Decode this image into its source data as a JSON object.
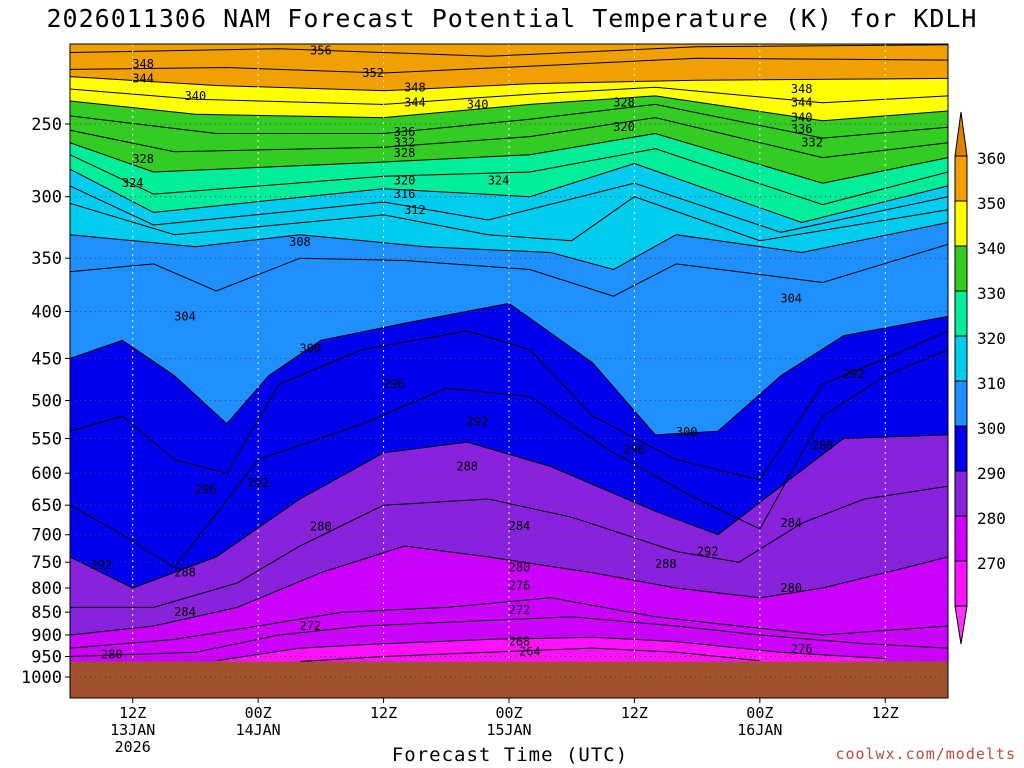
{
  "chart_data": {
    "type": "heatmap",
    "title": "2026011306 NAM Forecast Potential Temperature (K) for KDLH",
    "xlabel": "Forecast Time (UTC)",
    "ylabel": "",
    "credit": "coolwx.com/modelts",
    "x_ticks": [
      {
        "hour": 6,
        "line1": "12Z",
        "line2": "13JAN",
        "line3": "2026"
      },
      {
        "hour": 18,
        "line1": "00Z",
        "line2": "14JAN",
        "line3": ""
      },
      {
        "hour": 30,
        "line1": "12Z",
        "line2": "",
        "line3": ""
      },
      {
        "hour": 42,
        "line1": "00Z",
        "line2": "15JAN",
        "line3": ""
      },
      {
        "hour": 54,
        "line1": "12Z",
        "line2": "",
        "line3": ""
      },
      {
        "hour": 66,
        "line1": "00Z",
        "line2": "16JAN",
        "line3": ""
      },
      {
        "hour": 78,
        "line1": "12Z",
        "line2": "",
        "line3": ""
      }
    ],
    "x_range_hours": [
      0,
      84
    ],
    "y_ticks": [
      "250",
      "300",
      "350",
      "400",
      "450",
      "500",
      "550",
      "600",
      "650",
      "700",
      "750",
      "800",
      "850",
      "900",
      "950",
      "1000"
    ],
    "y_range_hpa": [
      200,
      1030
    ],
    "y_scale": "log-pressure",
    "colorbar": {
      "labels": [
        "360",
        "350",
        "340",
        "330",
        "320",
        "310",
        "300",
        "290",
        "280",
        "270"
      ],
      "band_colors": [
        "#f0a000",
        "#ffff00",
        "#33cc22",
        "#00ee99",
        "#00ccee",
        "#1e90ff",
        "#0000ee",
        "#8822dd",
        "#cc00ff",
        "#ff11ff"
      ],
      "arrow_top_color": "#e08000",
      "arrow_bottom_color": "#ff33ff"
    },
    "surface_color": "#a0522d",
    "surface_pressure_hpa": 962,
    "isentropes": [
      {
        "theta": 356,
        "points": [
          [
            0,
            209
          ],
          [
            20,
            207
          ],
          [
            40,
            211
          ],
          [
            60,
            206
          ],
          [
            84,
            205
          ]
        ]
      },
      {
        "theta": 352,
        "points": [
          [
            0,
            218
          ],
          [
            15,
            217
          ],
          [
            30,
            220
          ],
          [
            45,
            216
          ],
          [
            60,
            212
          ],
          [
            84,
            213
          ]
        ]
      },
      {
        "theta": 348,
        "points": [
          [
            0,
            222
          ],
          [
            14,
            227
          ],
          [
            30,
            230
          ],
          [
            44,
            226
          ],
          [
            60,
            224
          ],
          [
            84,
            223
          ]
        ]
      },
      {
        "theta": 344,
        "points": [
          [
            0,
            229
          ],
          [
            12,
            235
          ],
          [
            30,
            238
          ],
          [
            44,
            232
          ],
          [
            56,
            228
          ],
          [
            72,
            237
          ],
          [
            84,
            233
          ]
        ]
      },
      {
        "theta": 340,
        "points": [
          [
            0,
            236
          ],
          [
            12,
            244
          ],
          [
            30,
            246
          ],
          [
            44,
            238
          ],
          [
            56,
            233
          ],
          [
            72,
            248
          ],
          [
            84,
            242
          ]
        ]
      },
      {
        "theta": 336,
        "points": [
          [
            0,
            245
          ],
          [
            14,
            256
          ],
          [
            30,
            256
          ],
          [
            44,
            247
          ],
          [
            56,
            238
          ],
          [
            72,
            259
          ],
          [
            84,
            252
          ]
        ]
      },
      {
        "theta": 332,
        "points": [
          [
            0,
            254
          ],
          [
            10,
            268
          ],
          [
            30,
            265
          ],
          [
            44,
            258
          ],
          [
            56,
            246
          ],
          [
            72,
            272
          ],
          [
            84,
            262
          ]
        ]
      },
      {
        "theta": 328,
        "points": [
          [
            0,
            262
          ],
          [
            8,
            282
          ],
          [
            30,
            275
          ],
          [
            44,
            270
          ],
          [
            56,
            256
          ],
          [
            72,
            290
          ],
          [
            84,
            272
          ]
        ]
      },
      {
        "theta": 324,
        "points": [
          [
            0,
            270
          ],
          [
            8,
            298
          ],
          [
            30,
            285
          ],
          [
            44,
            282
          ],
          [
            56,
            266
          ],
          [
            72,
            306
          ],
          [
            84,
            282
          ]
        ]
      },
      {
        "theta": 320,
        "points": [
          [
            0,
            280
          ],
          [
            8,
            312
          ],
          [
            30,
            294
          ],
          [
            44,
            300
          ],
          [
            54,
            276
          ],
          [
            70,
            320
          ],
          [
            84,
            292
          ]
        ]
      },
      {
        "theta": 316,
        "points": [
          [
            0,
            292
          ],
          [
            8,
            322
          ],
          [
            30,
            304
          ],
          [
            40,
            318
          ],
          [
            54,
            290
          ],
          [
            68,
            328
          ],
          [
            84,
            300
          ]
        ]
      },
      {
        "theta": 312,
        "points": [
          [
            0,
            305
          ],
          [
            10,
            330
          ],
          [
            30,
            314
          ],
          [
            40,
            330
          ],
          [
            48,
            335
          ],
          [
            54,
            300
          ],
          [
            66,
            335
          ],
          [
            84,
            310
          ]
        ]
      },
      {
        "theta": 308,
        "points": [
          [
            0,
            330
          ],
          [
            12,
            340
          ],
          [
            22,
            330
          ],
          [
            34,
            340
          ],
          [
            46,
            345
          ],
          [
            52,
            360
          ],
          [
            58,
            330
          ],
          [
            70,
            345
          ],
          [
            84,
            320
          ]
        ]
      },
      {
        "theta": 304,
        "points": [
          [
            0,
            362
          ],
          [
            8,
            355
          ],
          [
            14,
            380
          ],
          [
            22,
            350
          ],
          [
            32,
            352
          ],
          [
            44,
            360
          ],
          [
            52,
            385
          ],
          [
            58,
            355
          ],
          [
            72,
            372
          ],
          [
            84,
            338
          ]
        ]
      },
      {
        "theta": 300,
        "points": [
          [
            0,
            450
          ],
          [
            5,
            430
          ],
          [
            10,
            470
          ],
          [
            15,
            530
          ],
          [
            19,
            470
          ],
          [
            24,
            430
          ],
          [
            32,
            412
          ],
          [
            42,
            392
          ],
          [
            50,
            455
          ],
          [
            56,
            545
          ],
          [
            62,
            540
          ],
          [
            68,
            470
          ],
          [
            74,
            425
          ],
          [
            84,
            405
          ]
        ]
      },
      {
        "theta": 296,
        "points": [
          [
            0,
            540
          ],
          [
            5,
            520
          ],
          [
            10,
            580
          ],
          [
            15,
            600
          ],
          [
            20,
            480
          ],
          [
            28,
            440
          ],
          [
            38,
            420
          ],
          [
            44,
            440
          ],
          [
            50,
            520
          ],
          [
            58,
            580
          ],
          [
            66,
            610
          ],
          [
            72,
            480
          ],
          [
            78,
            450
          ],
          [
            84,
            420
          ]
        ]
      },
      {
        "theta": 292,
        "points": [
          [
            0,
            650
          ],
          [
            5,
            700
          ],
          [
            10,
            760
          ],
          [
            18,
            580
          ],
          [
            28,
            530
          ],
          [
            36,
            485
          ],
          [
            44,
            495
          ],
          [
            52,
            570
          ],
          [
            60,
            640
          ],
          [
            66,
            690
          ],
          [
            72,
            520
          ],
          [
            78,
            470
          ],
          [
            84,
            440
          ]
        ]
      },
      {
        "theta": 288,
        "points": [
          [
            0,
            740
          ],
          [
            6,
            800
          ],
          [
            14,
            740
          ],
          [
            22,
            640
          ],
          [
            30,
            570
          ],
          [
            38,
            555
          ],
          [
            46,
            590
          ],
          [
            56,
            660
          ],
          [
            62,
            700
          ],
          [
            68,
            620
          ],
          [
            74,
            550
          ],
          [
            84,
            545
          ]
        ]
      },
      {
        "theta": 284,
        "points": [
          [
            0,
            840
          ],
          [
            8,
            840
          ],
          [
            16,
            790
          ],
          [
            22,
            720
          ],
          [
            30,
            650
          ],
          [
            40,
            640
          ],
          [
            48,
            670
          ],
          [
            58,
            730
          ],
          [
            64,
            750
          ],
          [
            70,
            680
          ],
          [
            76,
            640
          ],
          [
            84,
            620
          ]
        ]
      },
      {
        "theta": 280,
        "points": [
          [
            0,
            900
          ],
          [
            8,
            880
          ],
          [
            16,
            840
          ],
          [
            24,
            770
          ],
          [
            32,
            720
          ],
          [
            40,
            740
          ],
          [
            50,
            770
          ],
          [
            58,
            800
          ],
          [
            66,
            820
          ],
          [
            72,
            800
          ],
          [
            80,
            760
          ],
          [
            84,
            740
          ]
        ]
      },
      {
        "theta": 276,
        "points": [
          [
            0,
            930
          ],
          [
            10,
            910
          ],
          [
            18,
            880
          ],
          [
            26,
            850
          ],
          [
            36,
            840
          ],
          [
            46,
            820
          ],
          [
            56,
            860
          ],
          [
            64,
            880
          ],
          [
            72,
            900
          ],
          [
            84,
            880
          ]
        ]
      },
      {
        "theta": 272,
        "points": [
          [
            0,
            950
          ],
          [
            12,
            940
          ],
          [
            20,
            900
          ],
          [
            28,
            880
          ],
          [
            38,
            870
          ],
          [
            48,
            860
          ],
          [
            58,
            880
          ],
          [
            66,
            900
          ],
          [
            76,
            920
          ],
          [
            84,
            930
          ]
        ]
      },
      {
        "theta": 268,
        "points": [
          [
            14,
            960
          ],
          [
            22,
            930
          ],
          [
            30,
            920
          ],
          [
            40,
            910
          ],
          [
            50,
            905
          ],
          [
            58,
            915
          ],
          [
            68,
            940
          ],
          [
            78,
            955
          ]
        ]
      },
      {
        "theta": 264,
        "points": [
          [
            22,
            962
          ],
          [
            30,
            950
          ],
          [
            40,
            940
          ],
          [
            50,
            930
          ],
          [
            58,
            940
          ],
          [
            66,
            960
          ]
        ]
      }
    ],
    "contour_labels": [
      {
        "text": "356",
        "hour": 24,
        "p": 208
      },
      {
        "text": "352",
        "hour": 29,
        "p": 220
      },
      {
        "text": "348",
        "hour": 7,
        "p": 215
      },
      {
        "text": "344",
        "hour": 7,
        "p": 223
      },
      {
        "text": "340",
        "hour": 12,
        "p": 233
      },
      {
        "text": "348",
        "hour": 33,
        "p": 228
      },
      {
        "text": "344",
        "hour": 33,
        "p": 237
      },
      {
        "text": "340",
        "hour": 39,
        "p": 238
      },
      {
        "text": "336",
        "hour": 32,
        "p": 255
      },
      {
        "text": "332",
        "hour": 32,
        "p": 262
      },
      {
        "text": "328",
        "hour": 32,
        "p": 269
      },
      {
        "text": "328",
        "hour": 7,
        "p": 273
      },
      {
        "text": "324",
        "hour": 6,
        "p": 290
      },
      {
        "text": "320",
        "hour": 32,
        "p": 288
      },
      {
        "text": "316",
        "hour": 32,
        "p": 298
      },
      {
        "text": "312",
        "hour": 33,
        "p": 310
      },
      {
        "text": "324",
        "hour": 41,
        "p": 288
      },
      {
        "text": "328",
        "hour": 53,
        "p": 237
      },
      {
        "text": "320",
        "hour": 53,
        "p": 252
      },
      {
        "text": "348",
        "hour": 70,
        "p": 229
      },
      {
        "text": "344",
        "hour": 70,
        "p": 237
      },
      {
        "text": "340",
        "hour": 70,
        "p": 246
      },
      {
        "text": "336",
        "hour": 70,
        "p": 253
      },
      {
        "text": "332",
        "hour": 71,
        "p": 262
      },
      {
        "text": "308",
        "hour": 22,
        "p": 336
      },
      {
        "text": "304",
        "hour": 11,
        "p": 405
      },
      {
        "text": "304",
        "hour": 69,
        "p": 387
      },
      {
        "text": "300",
        "hour": 23,
        "p": 439
      },
      {
        "text": "300",
        "hour": 59,
        "p": 541
      },
      {
        "text": "296",
        "hour": 31,
        "p": 480
      },
      {
        "text": "296",
        "hour": 54,
        "p": 565
      },
      {
        "text": "296",
        "hour": 13,
        "p": 625
      },
      {
        "text": "292",
        "hour": 18,
        "p": 615
      },
      {
        "text": "292",
        "hour": 39,
        "p": 527
      },
      {
        "text": "292",
        "hour": 75,
        "p": 468
      },
      {
        "text": "292",
        "hour": 3,
        "p": 755
      },
      {
        "text": "292",
        "hour": 61,
        "p": 730
      },
      {
        "text": "288",
        "hour": 38,
        "p": 590
      },
      {
        "text": "288",
        "hour": 11,
        "p": 770
      },
      {
        "text": "288",
        "hour": 57,
        "p": 753
      },
      {
        "text": "288",
        "hour": 72,
        "p": 560
      },
      {
        "text": "284",
        "hour": 43,
        "p": 685
      },
      {
        "text": "284",
        "hour": 11,
        "p": 850
      },
      {
        "text": "284",
        "hour": 69,
        "p": 680
      },
      {
        "text": "280",
        "hour": 24,
        "p": 686
      },
      {
        "text": "280",
        "hour": 43,
        "p": 760
      },
      {
        "text": "280",
        "hour": 69,
        "p": 800
      },
      {
        "text": "280",
        "hour": 4,
        "p": 945
      },
      {
        "text": "276",
        "hour": 43,
        "p": 795
      },
      {
        "text": "276",
        "hour": 70,
        "p": 932
      },
      {
        "text": "272",
        "hour": 23,
        "p": 880
      },
      {
        "text": "272",
        "hour": 43,
        "p": 845
      },
      {
        "text": "268",
        "hour": 43,
        "p": 915
      },
      {
        "text": "264",
        "hour": 44,
        "p": 938
      }
    ]
  }
}
